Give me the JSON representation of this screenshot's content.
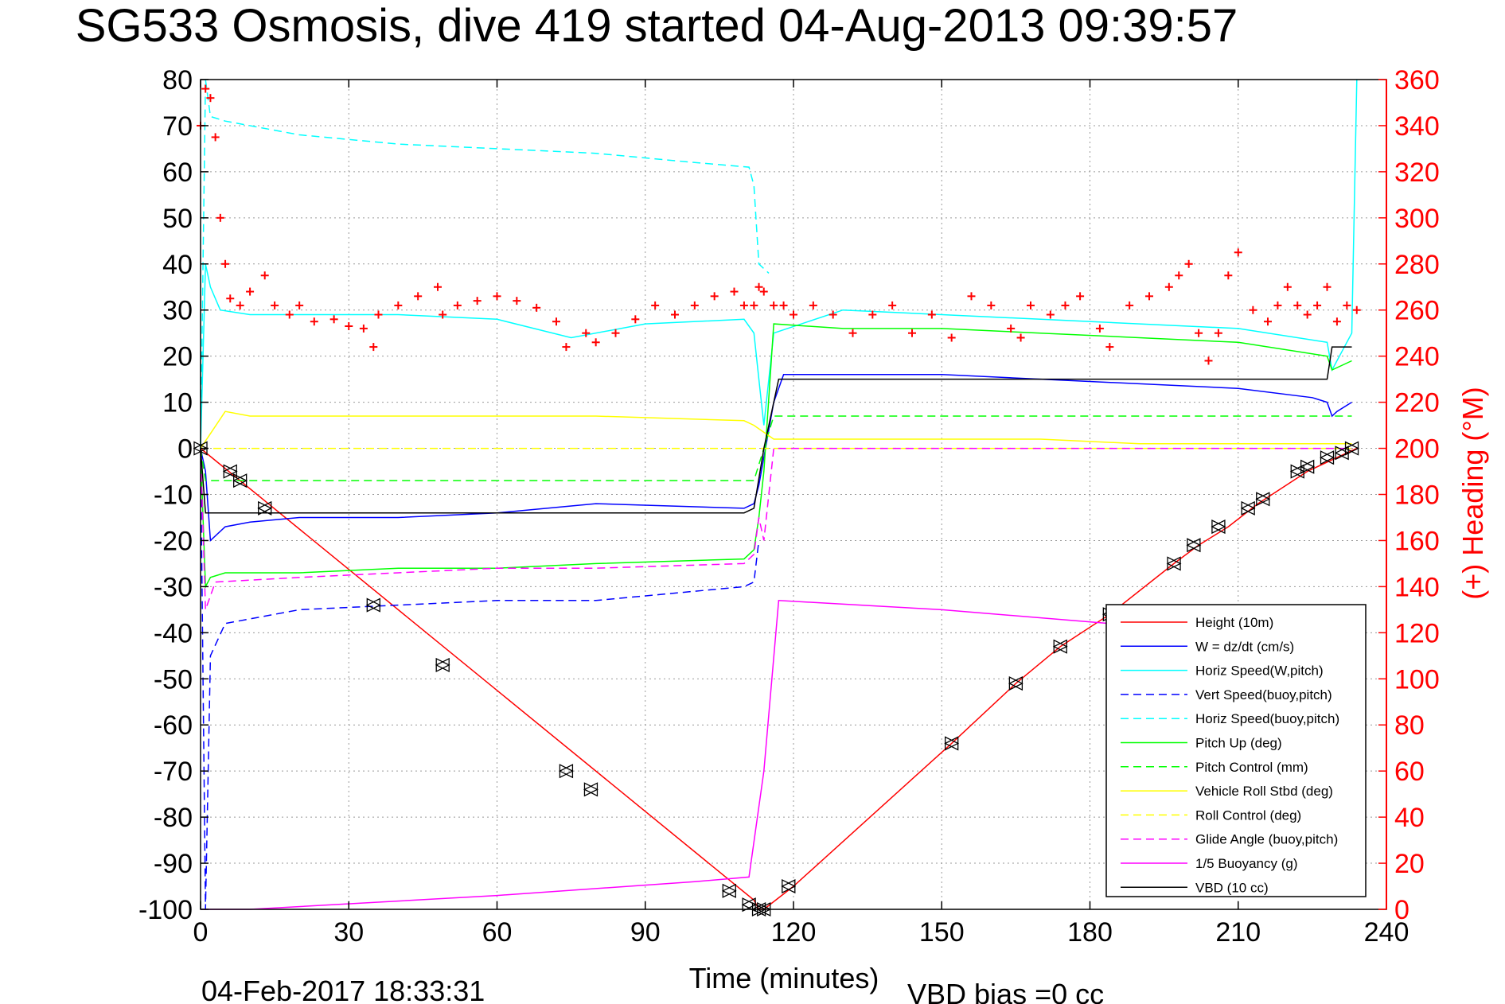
{
  "chart_data": {
    "type": "line",
    "title": "SG533 Osmosis, dive 419 started 04-Aug-2013 09:39:57",
    "xlabel": "Time (minutes)",
    "ylabel": "",
    "y2label": "(+) Heading (°M)",
    "xlim": [
      0,
      240
    ],
    "ylim": [
      -100,
      80
    ],
    "y2lim": [
      0,
      360
    ],
    "x_ticks": [
      "0",
      "30",
      "60",
      "90",
      "120",
      "150",
      "180",
      "210",
      "240"
    ],
    "y_ticks": [
      "80",
      "70",
      "60",
      "50",
      "40",
      "30",
      "20",
      "10",
      "0",
      "-10",
      "-20",
      "-30",
      "-40",
      "-50",
      "-60",
      "-70",
      "-80",
      "-90",
      "-100"
    ],
    "y2_ticks": [
      "360",
      "340",
      "320",
      "300",
      "280",
      "260",
      "240",
      "220",
      "200",
      "180",
      "160",
      "140",
      "120",
      "100",
      "80",
      "60",
      "40",
      "20",
      "0"
    ],
    "grid": true,
    "legend_position": "bottom-right",
    "colors": {
      "height": "#ff0000",
      "w": "#0000ff",
      "horiz_speed": "#00ffff",
      "pitch": "#00ff00",
      "roll": "#ffff00",
      "glide": "#ff00ff",
      "buoyancy": "#ff00ff",
      "vbd": "#000000",
      "heading": "#ff0000",
      "markers": "#000000"
    },
    "series": [
      {
        "name": "Height (10m)",
        "style": "solid",
        "color": "#ff0000",
        "x": [
          0,
          112,
          113,
          114,
          120,
          152,
          165,
          174,
          184,
          197,
          202,
          208,
          214,
          224,
          230,
          234
        ],
        "y": [
          0,
          -98,
          -100,
          -100,
          -95,
          -64,
          -51,
          -43,
          -36,
          -25,
          -21,
          -17,
          -12,
          -5,
          -2,
          0
        ]
      },
      {
        "name": "W = dz/dt (cm/s)",
        "style": "solid",
        "color": "#0000ff",
        "x": [
          0,
          1,
          2,
          5,
          10,
          20,
          40,
          60,
          80,
          110,
          112,
          113,
          116,
          118,
          130,
          150,
          170,
          190,
          210,
          225,
          228,
          229,
          230,
          233
        ],
        "y": [
          0,
          -5,
          -20,
          -17,
          -16,
          -15,
          -15,
          -14,
          -12,
          -13,
          -12,
          -8,
          10,
          16,
          16,
          16,
          15,
          14,
          13,
          11,
          10,
          7,
          8,
          10
        ]
      },
      {
        "name": "Horiz Speed(W,pitch)",
        "style": "solid",
        "color": "#00ffff",
        "x": [
          0,
          1,
          2,
          4,
          10,
          40,
          60,
          75,
          90,
          110,
          112,
          113,
          114,
          116,
          130,
          150,
          170,
          190,
          210,
          228,
          229,
          233,
          234
        ],
        "y": [
          0,
          40,
          35,
          30,
          29,
          29,
          28,
          24,
          27,
          28,
          25,
          15,
          5,
          25,
          30,
          29,
          28,
          27,
          26,
          23,
          17,
          25,
          80
        ]
      },
      {
        "name": "Vert Speed(buoy,pitch)",
        "style": "dashed",
        "color": "#0000ff",
        "x": [
          0,
          1,
          2,
          5,
          20,
          40,
          60,
          80,
          110,
          112,
          113
        ],
        "y": [
          0,
          -100,
          -45,
          -38,
          -35,
          -34,
          -33,
          -33,
          -30,
          -29,
          -20
        ]
      },
      {
        "name": "Horiz Speed(buoy,pitch)",
        "style": "dashed",
        "color": "#00ffff",
        "x": [
          0,
          1,
          2,
          5,
          20,
          40,
          60,
          80,
          100,
          111,
          112,
          113,
          115
        ],
        "y": [
          0,
          80,
          72,
          71,
          68,
          66,
          65,
          64,
          62,
          61,
          57,
          40,
          38
        ]
      },
      {
        "name": "Pitch Up (deg)",
        "style": "solid",
        "color": "#00ff00",
        "x": [
          0,
          1,
          2,
          5,
          20,
          40,
          60,
          80,
          110,
          112,
          113,
          114,
          116,
          130,
          150,
          170,
          190,
          210,
          228,
          229,
          233
        ],
        "y": [
          0,
          -30,
          -28,
          -27,
          -27,
          -26,
          -26,
          -25,
          -24,
          -22,
          -15,
          -5,
          27,
          26,
          26,
          25,
          24,
          23,
          20,
          17,
          19
        ]
      },
      {
        "name": "Pitch Control (mm)",
        "style": "dashed",
        "color": "#00ff00",
        "x": [
          0,
          1,
          3,
          112,
          114,
          116,
          233
        ],
        "y": [
          0,
          -7,
          -7,
          -7,
          0,
          7,
          7
        ]
      },
      {
        "name": "Vehicle Roll Stbd (deg)",
        "style": "solid",
        "color": "#ffff00",
        "x": [
          0,
          5,
          10,
          20,
          40,
          60,
          80,
          110,
          112,
          116,
          130,
          150,
          170,
          190,
          210,
          230,
          233
        ],
        "y": [
          0,
          8,
          7,
          7,
          7,
          7,
          7,
          6,
          5,
          2,
          2,
          2,
          2,
          1,
          1,
          1,
          1
        ]
      },
      {
        "name": "Roll Control (deg)",
        "style": "dashed",
        "color": "#ffff00",
        "x": [
          0,
          112,
          116,
          233
        ],
        "y": [
          0,
          0,
          0,
          0
        ]
      },
      {
        "name": "Glide Angle (buoy,pitch)",
        "style": "dashed",
        "color": "#ff00ff",
        "x": [
          0,
          1,
          3,
          20,
          40,
          60,
          80,
          110,
          112,
          113,
          114,
          116,
          233
        ],
        "y": [
          0,
          -35,
          -29,
          -28,
          -27,
          -26,
          -26,
          -25,
          -23,
          -15,
          -20,
          0,
          0
        ]
      },
      {
        "name": "1/5 Buoyancy (g)",
        "style": "solid",
        "color": "#ff00ff",
        "x": [
          0,
          10,
          60,
          100,
          111,
          114,
          117,
          150,
          184
        ],
        "y": [
          -100,
          -100,
          -97,
          -94,
          -93,
          -70,
          -33,
          -35,
          -38
        ]
      },
      {
        "name": "VBD (10 cc)",
        "style": "solid",
        "color": "#000000",
        "x": [
          0,
          1,
          2,
          110,
          112,
          114,
          117,
          120,
          170,
          228,
          229,
          233
        ],
        "y": [
          0,
          -14,
          -14,
          -14,
          -13,
          0,
          15,
          15,
          15,
          15,
          22,
          22
        ]
      }
    ],
    "heading": {
      "name": "(+) Heading",
      "x": [
        0,
        1,
        2,
        3,
        4,
        5,
        6,
        8,
        10,
        13,
        15,
        18,
        20,
        23,
        27,
        30,
        33,
        35,
        36,
        40,
        44,
        48,
        49,
        52,
        56,
        60,
        64,
        68,
        72,
        74,
        78,
        80,
        84,
        88,
        92,
        96,
        100,
        104,
        108,
        110,
        112,
        113,
        114,
        116,
        118,
        120,
        124,
        128,
        132,
        136,
        140,
        144,
        148,
        152,
        156,
        160,
        164,
        166,
        168,
        172,
        175,
        178,
        182,
        184,
        188,
        192,
        196,
        198,
        200,
        202,
        204,
        206,
        208,
        210,
        213,
        216,
        218,
        220,
        222,
        224,
        226,
        228,
        230,
        232,
        234
      ],
      "y": [
        340,
        356,
        352,
        335,
        300,
        280,
        265,
        262,
        268,
        275,
        262,
        258,
        262,
        255,
        256,
        253,
        252,
        244,
        258,
        262,
        266,
        270,
        258,
        262,
        264,
        266,
        264,
        261,
        255,
        244,
        250,
        246,
        250,
        256,
        262,
        258,
        262,
        266,
        268,
        262,
        262,
        270,
        268,
        262,
        262,
        258,
        262,
        258,
        250,
        258,
        262,
        250,
        258,
        248,
        266,
        262,
        252,
        248,
        262,
        258,
        262,
        266,
        252,
        244,
        262,
        266,
        270,
        275,
        280,
        250,
        238,
        250,
        275,
        285,
        260,
        255,
        262,
        270,
        262,
        258,
        262,
        270,
        255,
        262,
        260
      ]
    },
    "markers": {
      "x": [
        0,
        6,
        8,
        13,
        35,
        49,
        74,
        79,
        107,
        111,
        113,
        114,
        119,
        152,
        165,
        174,
        184,
        197,
        201,
        206,
        212,
        215,
        222,
        224,
        228,
        231,
        233
      ],
      "y": [
        0,
        -5,
        -7,
        -13,
        -34,
        -47,
        -70,
        -74,
        -96,
        -99,
        -100,
        -100,
        -95,
        -64,
        -51,
        -43,
        -36,
        -25,
        -21,
        -17,
        -13,
        -11,
        -5,
        -4,
        -2,
        -1,
        0
      ]
    }
  },
  "footer": {
    "timestamp": "04-Feb-2017 18:33:31",
    "vbd_bias": "VBD bias =0 cc"
  }
}
